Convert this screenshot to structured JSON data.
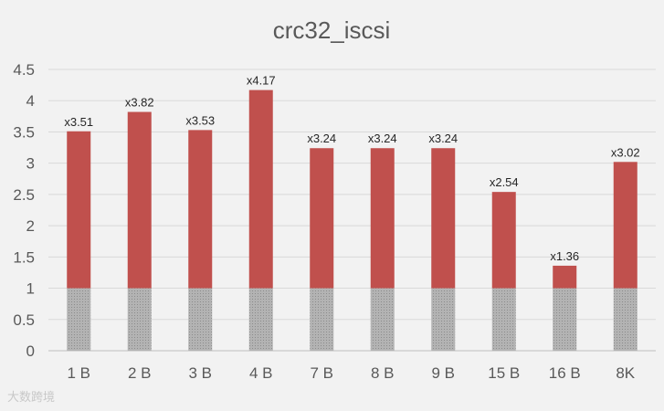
{
  "chart_data": {
    "type": "bar",
    "title": "crc32_iscsi",
    "categories": [
      "1 B",
      "2 B",
      "3 B",
      "4 B",
      "7 B",
      "8 B",
      "9 B",
      "15 B",
      "16 B",
      "8K"
    ],
    "series": [
      {
        "values": [
          1,
          1,
          1,
          1,
          1,
          1,
          1,
          1,
          1,
          1
        ],
        "color": "#a6a6a6",
        "pattern": "dotted"
      },
      {
        "values": [
          3.51,
          3.82,
          3.53,
          4.17,
          3.24,
          3.24,
          3.24,
          2.54,
          1.36,
          3.02
        ],
        "color": "#c0504d"
      }
    ],
    "data_labels": [
      "x3.51",
      "x3.82",
      "x3.53",
      "x4.17",
      "x3.24",
      "x3.24",
      "x3.24",
      "x2.54",
      "x1.36",
      "x3.02"
    ],
    "y_ticks": [
      "0",
      "0.5",
      "1",
      "1.5",
      "2",
      "2.5",
      "3",
      "3.5",
      "4",
      "4.5"
    ],
    "ylim": [
      0,
      4.5
    ],
    "grid": true,
    "xlabel": "",
    "ylabel": ""
  },
  "watermark": "大数跨境"
}
